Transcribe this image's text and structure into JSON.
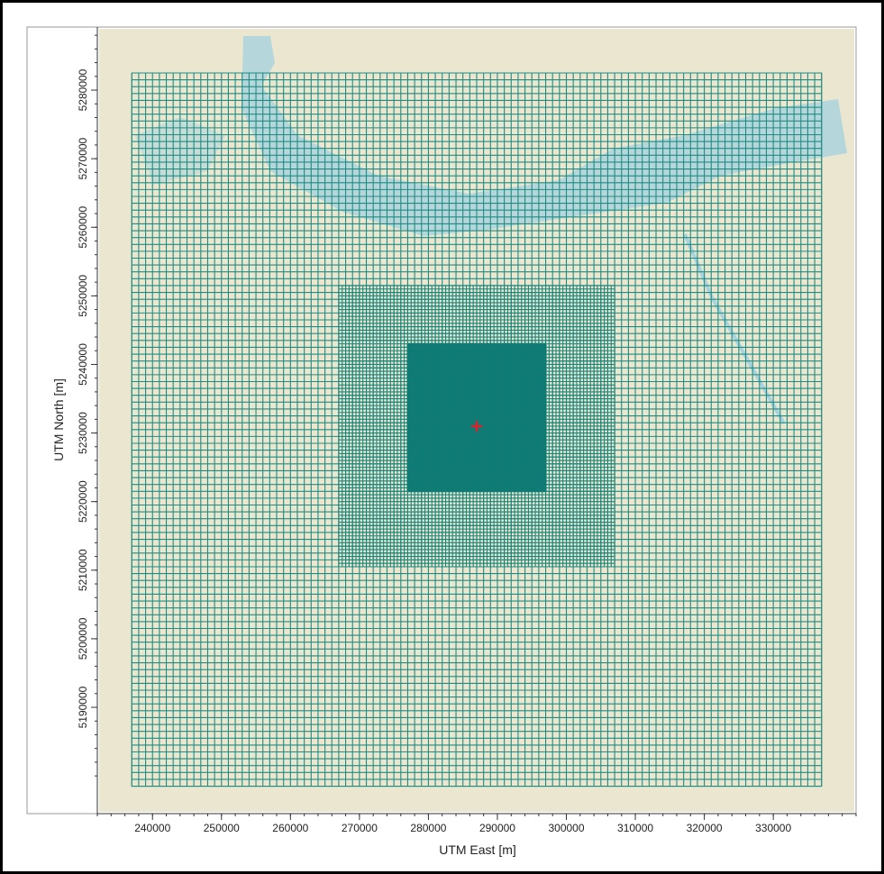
{
  "chart_data": {
    "type": "receptor-grid",
    "x_label": "UTM East [m]",
    "y_label": "UTM North [m]",
    "xlim": [
      232000,
      342000
    ],
    "ylim": [
      5174500,
      5289200
    ],
    "xticks": [
      240000,
      250000,
      260000,
      270000,
      280000,
      290000,
      300000,
      310000,
      320000,
      330000
    ],
    "yticks": [
      5190000,
      5200000,
      5210000,
      5220000,
      5230000,
      5240000,
      5250000,
      5260000,
      5270000,
      5280000
    ],
    "receptor_grids": [
      {
        "xmin": 237000,
        "xmax": 337000,
        "ymin": 5178500,
        "ymax": 5282500,
        "spacing": 1000,
        "color": "#1f8c82"
      },
      {
        "xmin": 267000,
        "xmax": 307000,
        "ymin": 5210500,
        "ymax": 5251500,
        "spacing": 500,
        "color": "#1a857b"
      },
      {
        "xmin": 277000,
        "xmax": 297000,
        "ymin": 5221500,
        "ymax": 5243000,
        "spacing": 250,
        "color": "#0f7b74"
      }
    ],
    "source": {
      "x": 287000,
      "y": 5231000,
      "color": "#e0202a"
    }
  }
}
